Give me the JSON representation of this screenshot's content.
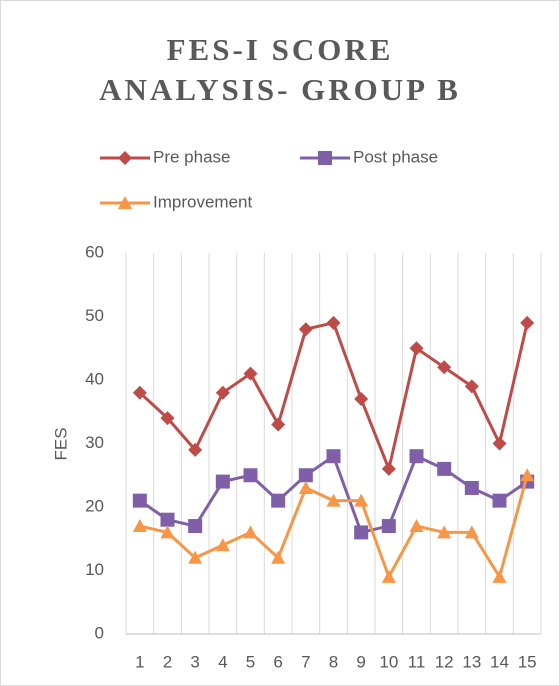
{
  "chart_data": {
    "type": "line",
    "title": "FES-I SCORE ANALYSIS- GROUP B",
    "y_label": "FES",
    "categories": [
      "1",
      "2",
      "3",
      "4",
      "5",
      "6",
      "7",
      "8",
      "9",
      "10",
      "11",
      "12",
      "13",
      "14",
      "15"
    ],
    "series": [
      {
        "name": "Pre phase",
        "color": "#be4b48",
        "marker": "diamond",
        "values": [
          38,
          34,
          29,
          38,
          41,
          33,
          48,
          49,
          37,
          26,
          45,
          42,
          39,
          30,
          49
        ]
      },
      {
        "name": "Post phase",
        "color": "#7f60a8",
        "marker": "square",
        "values": [
          21,
          18,
          17,
          24,
          25,
          21,
          25,
          28,
          16,
          17,
          28,
          26,
          23,
          21,
          24
        ]
      },
      {
        "name": "Improvement",
        "color": "#f79646",
        "marker": "triangle",
        "values": [
          17,
          16,
          12,
          14,
          16,
          12,
          23,
          21,
          21,
          9,
          17,
          16,
          16,
          9,
          25
        ]
      }
    ],
    "ylim": [
      0,
      60
    ],
    "yticks": [
      0,
      10,
      20,
      30,
      40,
      50,
      60
    ],
    "grid": "x",
    "legend": "top"
  }
}
